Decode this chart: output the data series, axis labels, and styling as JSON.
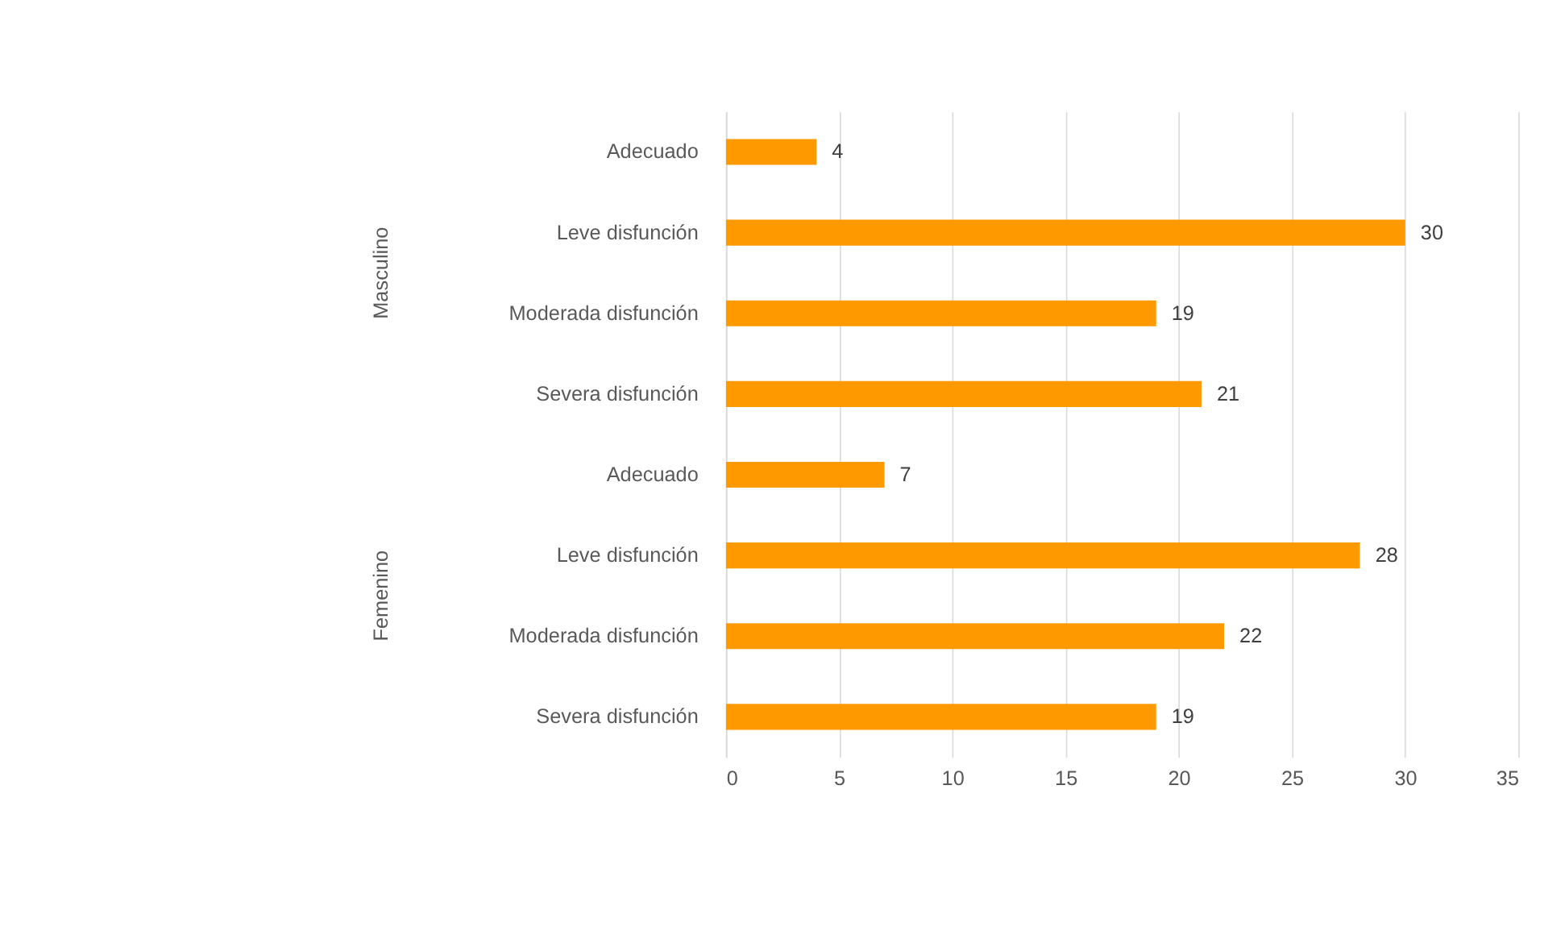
{
  "chart_data": {
    "type": "bar",
    "orientation": "horizontal",
    "categories": [
      "Adecuado",
      "Leve disfunción",
      "Moderada disfunción",
      "Severa disfunción",
      "Adecuado",
      "Leve disfunción",
      "Moderada disfunción",
      "Severa disfunción"
    ],
    "values": [
      4,
      30,
      19,
      21,
      7,
      28,
      22,
      19
    ],
    "color": "#ff9900",
    "xlim": [
      0,
      35
    ],
    "xticks": [
      0,
      5,
      10,
      15,
      20,
      25,
      30,
      35
    ],
    "grid": "x",
    "data_labels": true,
    "annotations": [
      "Masculino",
      "Femenino"
    ]
  }
}
